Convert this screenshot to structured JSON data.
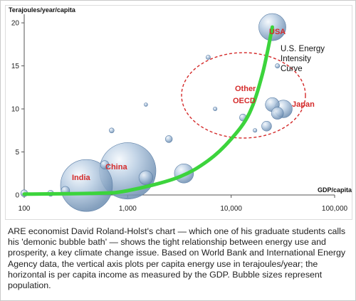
{
  "chart_data": {
    "type": "scatter",
    "subtype": "bubble",
    "title": "",
    "ylabel": "Terajoules/year/capita",
    "xlabel": "GDP/capita",
    "x_scale": "log",
    "xlim": [
      100,
      100000
    ],
    "ylim": [
      0,
      21
    ],
    "x_ticks": [
      100,
      1000,
      10000,
      100000
    ],
    "x_tick_labels": [
      "100",
      "1,000",
      "10,000",
      "100,000"
    ],
    "y_ticks": [
      0,
      5,
      10,
      15,
      20
    ],
    "y_tick_labels": [
      "0",
      "5",
      "10",
      "15",
      "20"
    ],
    "grid": false,
    "colors": {
      "bubble": "#9fb9d6",
      "curve": "#3cd43c",
      "highlight_label": "#d42a2a",
      "ellipse": "#d42a2a"
    },
    "bubbles": [
      {
        "label": "India",
        "x": 400,
        "y": 1.1,
        "size": 1100
      },
      {
        "label": "China",
        "x": 1000,
        "y": 2.8,
        "size": 1300
      },
      {
        "label": "USA",
        "x": 25000,
        "y": 19.5,
        "size": 300
      },
      {
        "label": "",
        "x": 32000,
        "y": 10.0,
        "size": 127
      },
      {
        "label": "",
        "x": 25000,
        "y": 10.5,
        "size": 80
      },
      {
        "label": "",
        "x": 28000,
        "y": 9.5,
        "size": 60
      },
      {
        "label": "",
        "x": 22000,
        "y": 8.0,
        "size": 40
      },
      {
        "label": "",
        "x": 28000,
        "y": 15.0,
        "size": 8
      },
      {
        "label": "",
        "x": 6000,
        "y": 16.0,
        "size": 8
      },
      {
        "label": "",
        "x": 13000,
        "y": 9.0,
        "size": 20
      },
      {
        "label": "",
        "x": 17000,
        "y": 7.5,
        "size": 6
      },
      {
        "label": "",
        "x": 7000,
        "y": 10.0,
        "size": 6
      },
      {
        "label": "",
        "x": 3500,
        "y": 2.5,
        "size": 150
      },
      {
        "label": "",
        "x": 2500,
        "y": 6.5,
        "size": 20
      },
      {
        "label": "",
        "x": 1500,
        "y": 2.0,
        "size": 80
      },
      {
        "label": "",
        "x": 1500,
        "y": 10.5,
        "size": 5
      },
      {
        "label": "",
        "x": 700,
        "y": 7.5,
        "size": 10
      },
      {
        "label": "",
        "x": 600,
        "y": 3.5,
        "size": 30
      },
      {
        "label": "",
        "x": 250,
        "y": 0.5,
        "size": 30
      },
      {
        "label": "",
        "x": 180,
        "y": 0.2,
        "size": 15
      },
      {
        "label": "",
        "x": 100,
        "y": 0.2,
        "size": 20
      }
    ],
    "curve": {
      "label": "U.S. Energy Intensity Curve",
      "x": [
        100,
        500,
        1000,
        3000,
        6000,
        10000,
        15000,
        20000,
        25000
      ],
      "y": [
        0.1,
        0.2,
        0.5,
        2.0,
        4.0,
        6.5,
        9.5,
        14.0,
        19.5
      ]
    },
    "annotations": [
      "U.S. Energy",
      "Intensity",
      "Curve"
    ],
    "region_labels": [
      "Other",
      "OECD",
      "Japan"
    ]
  },
  "caption": "ARE economist David Roland-Holst's chart — which one of his graduate students calls his 'demonic bubble bath' — shows the tight relationship between energy use and prosperity, a key climate change issue. Based on World Bank and International Energy Agency data, the vertical axis plots per capita energy use in terajoules/year; the horizontal is per capita income as measured by the GDP. Bubble sizes represent population."
}
